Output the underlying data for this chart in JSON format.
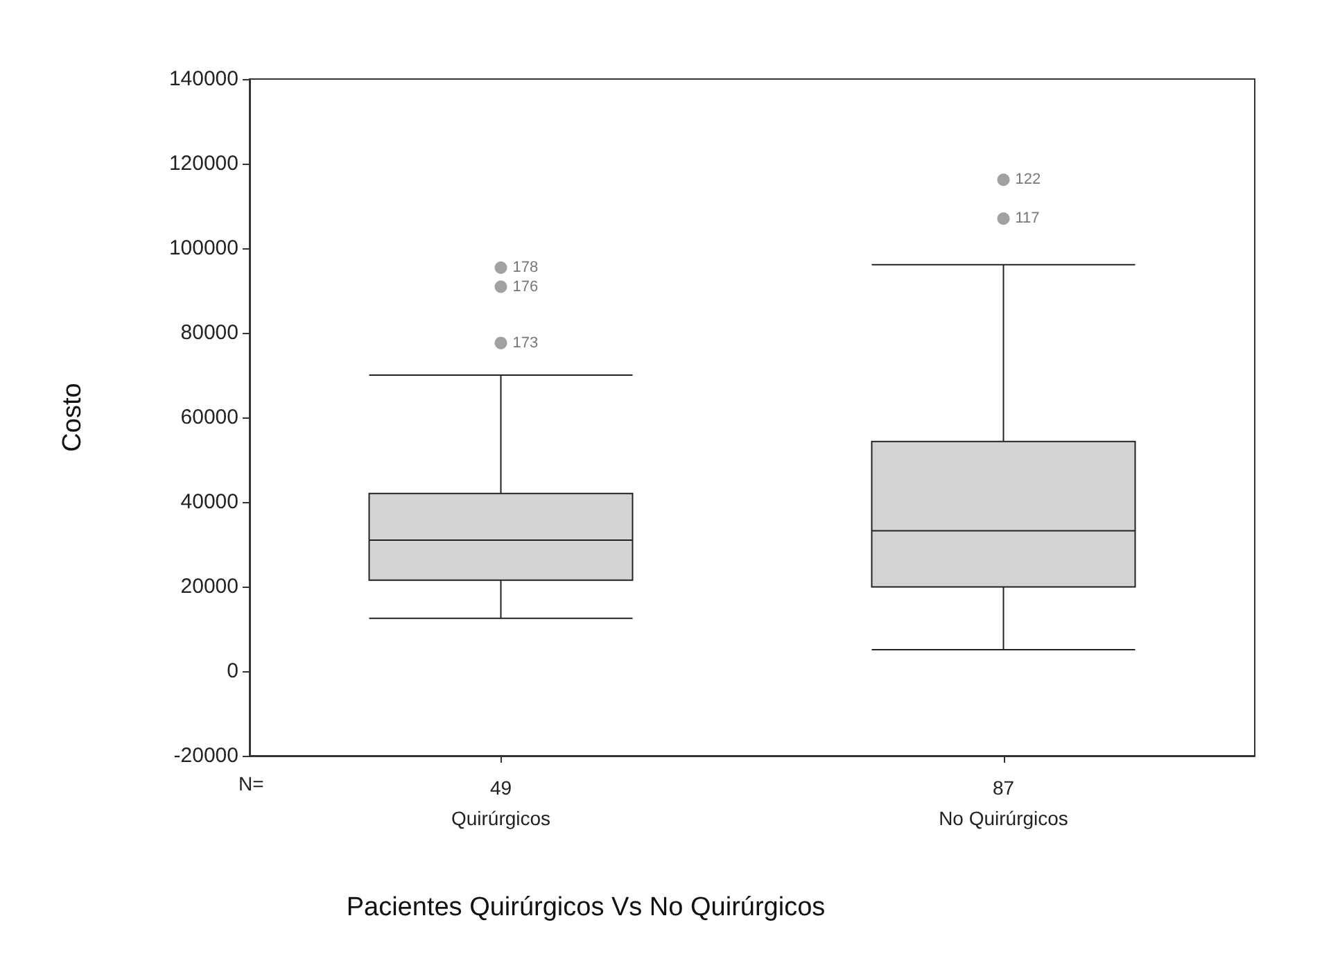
{
  "chart_data": {
    "type": "box",
    "xlabel": "Pacientes Quirúrgicos Vs No Quirúrgicos",
    "ylabel": "Costo",
    "categories": [
      "49\nQuirúrgicos",
      "87\nNo Quirúrgicos"
    ],
    "color": "#d4d4d4",
    "boxes": [
      {
        "low": 12500,
        "q1": 21500,
        "median": 31000,
        "q3": 42000,
        "high": 70000,
        "outliers": [
          95400,
          90900,
          77600
        ]
      },
      {
        "low": 5100,
        "q1": 19900,
        "median": 33200,
        "q3": 54300,
        "high": 96100,
        "outliers": [
          116200,
          107000
        ]
      }
    ],
    "ylim": [
      -20000,
      140000
    ],
    "yticks": [
      -20000,
      0,
      20000,
      40000,
      60000,
      80000,
      100000,
      120000,
      140000
    ],
    "grid": false,
    "annotations": [
      "N=",
      "178",
      "176",
      "173",
      "122",
      "117"
    ]
  }
}
